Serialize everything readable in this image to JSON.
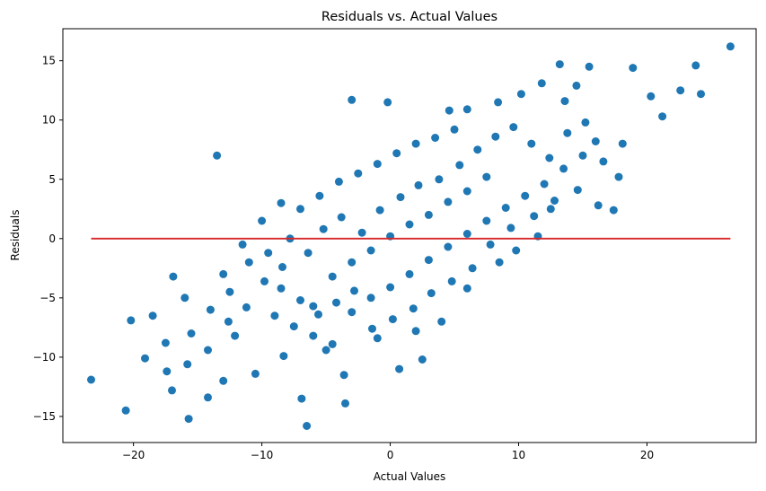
{
  "chart_data": {
    "type": "scatter",
    "title": "Residuals vs. Actual Values",
    "xlabel": "Actual Values",
    "ylabel": "Residuals",
    "xlim": [
      -25.5,
      28.5
    ],
    "ylim": [
      -17.2,
      17.7
    ],
    "xticks": [
      -20,
      -10,
      0,
      10,
      20
    ],
    "yticks": [
      -15,
      -10,
      -5,
      0,
      5,
      10,
      15
    ],
    "grid": false,
    "point_color": "#1f77b4",
    "reference_line": {
      "x": [
        -23.3,
        26.5
      ],
      "y": [
        0,
        0
      ],
      "color": "#d62728"
    },
    "series": [
      {
        "points": [
          [
            -23.3,
            -11.9
          ],
          [
            -20.6,
            -14.5
          ],
          [
            -15.7,
            -15.2
          ],
          [
            -13.5,
            7.0
          ],
          [
            26.5,
            16.2
          ],
          [
            24.2,
            12.2
          ],
          [
            23.8,
            14.6
          ],
          [
            22.6,
            12.5
          ],
          [
            20.3,
            12.0
          ],
          [
            21.2,
            10.3
          ],
          [
            18.9,
            14.4
          ],
          [
            -6.5,
            -15.8
          ],
          [
            -3.5,
            -13.9
          ],
          [
            -6.9,
            -13.5
          ],
          [
            -3.0,
            11.7
          ],
          [
            -0.2,
            11.5
          ],
          [
            -20.2,
            -6.9
          ],
          [
            -19.1,
            -10.1
          ],
          [
            -17.0,
            -12.8
          ],
          [
            -14.2,
            -13.4
          ],
          [
            -13.0,
            -12.0
          ],
          [
            -3.6,
            -11.5
          ],
          [
            0.7,
            -11.0
          ],
          [
            2.5,
            -10.2
          ],
          [
            17.4,
            2.4
          ],
          [
            16.2,
            2.8
          ],
          [
            15.5,
            14.5
          ],
          [
            13.2,
            14.7
          ],
          [
            14.5,
            12.9
          ],
          [
            18.1,
            8.0
          ],
          [
            17.8,
            5.2
          ],
          [
            -16.9,
            -3.2
          ],
          [
            -12.1,
            -8.2
          ],
          [
            -10.5,
            -11.4
          ],
          [
            -8.3,
            -9.9
          ],
          [
            -5.0,
            -9.4
          ],
          [
            -1.0,
            -8.4
          ],
          [
            2.0,
            -7.8
          ],
          [
            4.0,
            -7.0
          ],
          [
            6.0,
            -4.2
          ],
          [
            8.5,
            -2.0
          ],
          [
            9.8,
            -1.0
          ],
          [
            11.5,
            0.2
          ],
          [
            12.5,
            2.5
          ],
          [
            10.2,
            12.2
          ],
          [
            11.8,
            13.1
          ],
          [
            13.6,
            11.6
          ],
          [
            8.4,
            11.5
          ],
          [
            6.0,
            10.9
          ],
          [
            4.6,
            10.8
          ],
          [
            -8.5,
            -4.2
          ],
          [
            -6.0,
            -5.7
          ],
          [
            -4.5,
            -3.2
          ],
          [
            -3.0,
            -2.0
          ],
          [
            -1.5,
            -1.0
          ],
          [
            0.0,
            0.2
          ],
          [
            1.5,
            1.2
          ],
          [
            3.0,
            2.0
          ],
          [
            4.5,
            3.1
          ],
          [
            6.0,
            4.0
          ],
          [
            7.5,
            5.2
          ],
          [
            -7.0,
            2.5
          ],
          [
            -5.5,
            3.6
          ],
          [
            -4.0,
            4.8
          ],
          [
            -2.5,
            5.5
          ],
          [
            -1.0,
            6.3
          ],
          [
            0.5,
            7.2
          ],
          [
            2.0,
            8.0
          ],
          [
            3.5,
            8.5
          ],
          [
            5.0,
            9.2
          ],
          [
            -9.0,
            -6.5
          ],
          [
            -7.5,
            -7.4
          ],
          [
            -6.0,
            -8.2
          ],
          [
            -4.5,
            -8.9
          ],
          [
            -3.0,
            -6.2
          ],
          [
            -1.5,
            -5.0
          ],
          [
            0.0,
            -4.1
          ],
          [
            1.5,
            -3.0
          ],
          [
            3.0,
            -1.8
          ],
          [
            4.5,
            -0.7
          ],
          [
            6.0,
            0.4
          ],
          [
            7.5,
            1.5
          ],
          [
            9.0,
            2.6
          ],
          [
            10.5,
            3.6
          ],
          [
            12.0,
            4.6
          ],
          [
            13.5,
            5.9
          ],
          [
            15.0,
            7.0
          ],
          [
            16.0,
            8.2
          ],
          [
            -11.0,
            -2.0
          ],
          [
            -12.5,
            -4.5
          ],
          [
            -14.0,
            -6.0
          ],
          [
            -15.5,
            -8.0
          ],
          [
            -17.5,
            -8.8
          ],
          [
            -18.5,
            -6.5
          ],
          [
            -16.0,
            -5.0
          ],
          [
            -13.0,
            -3.0
          ],
          [
            -11.5,
            -0.5
          ],
          [
            -10.0,
            1.5
          ],
          [
            -8.5,
            3.0
          ],
          [
            -9.5,
            -1.2
          ],
          [
            -7.8,
            0.0
          ],
          [
            -6.4,
            -1.2
          ],
          [
            -5.2,
            0.8
          ],
          [
            -3.8,
            1.8
          ],
          [
            -2.2,
            0.5
          ],
          [
            -0.8,
            2.4
          ],
          [
            0.8,
            3.5
          ],
          [
            2.2,
            4.5
          ],
          [
            3.8,
            5.0
          ],
          [
            5.4,
            6.2
          ],
          [
            6.8,
            7.5
          ],
          [
            8.2,
            8.6
          ],
          [
            9.6,
            9.4
          ],
          [
            11.0,
            8.0
          ],
          [
            12.4,
            6.8
          ],
          [
            13.8,
            8.9
          ],
          [
            15.2,
            9.8
          ],
          [
            16.6,
            6.5
          ],
          [
            14.6,
            4.1
          ],
          [
            12.8,
            3.2
          ],
          [
            11.2,
            1.9
          ],
          [
            9.4,
            0.9
          ],
          [
            7.8,
            -0.5
          ],
          [
            6.4,
            -2.5
          ],
          [
            4.8,
            -3.6
          ],
          [
            3.2,
            -4.6
          ],
          [
            1.8,
            -5.9
          ],
          [
            0.2,
            -6.8
          ],
          [
            -1.4,
            -7.6
          ],
          [
            -2.8,
            -4.4
          ],
          [
            -4.2,
            -5.4
          ],
          [
            -5.6,
            -6.4
          ],
          [
            -7.0,
            -5.2
          ],
          [
            -8.4,
            -2.4
          ],
          [
            -9.8,
            -3.6
          ],
          [
            -11.2,
            -5.8
          ],
          [
            -12.6,
            -7.0
          ],
          [
            -14.2,
            -9.4
          ],
          [
            -15.8,
            -10.6
          ],
          [
            -17.4,
            -11.2
          ]
        ]
      }
    ]
  }
}
